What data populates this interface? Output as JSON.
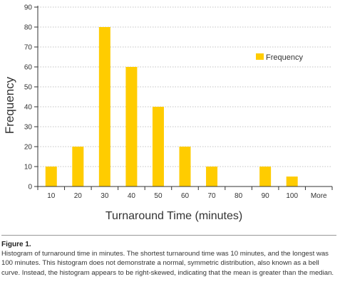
{
  "chart_data": {
    "type": "bar",
    "categories": [
      "10",
      "20",
      "30",
      "40",
      "50",
      "60",
      "70",
      "80",
      "90",
      "100",
      "More"
    ],
    "series": [
      {
        "name": "Frequency",
        "values": [
          10,
          20,
          80,
          60,
          40,
          20,
          10,
          0,
          10,
          5,
          0
        ]
      }
    ],
    "xlabel": "Turnaround Time (minutes)",
    "ylabel": "Frequency",
    "ylim": [
      0,
      90
    ],
    "yticks": [
      0,
      10,
      20,
      30,
      40,
      50,
      60,
      70,
      80,
      90
    ],
    "grid": true,
    "legend": "top-right",
    "colors": {
      "bar": "#ffcc00",
      "grid": "#b0b0b0",
      "axis": "#333333"
    }
  },
  "caption": {
    "title": "Figure 1.",
    "body": "Histogram of turnaround time in minutes. The shortest turnaround time was 10 minutes, and the longest was 100 minutes. This histogram does not demonstrate a normal, symmetric distribution, also known as a bell curve. Instead, the histogram appears to be right-skewed, indicating that the mean is greater than the median."
  }
}
